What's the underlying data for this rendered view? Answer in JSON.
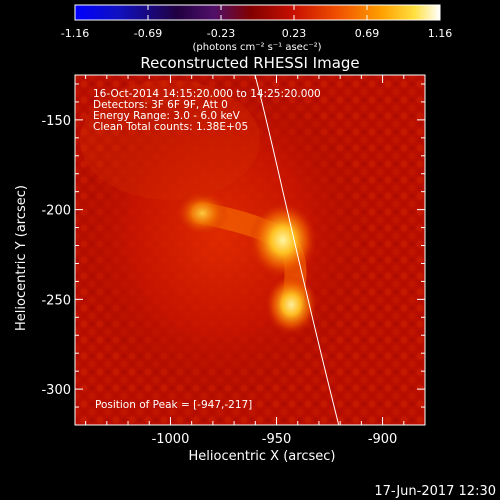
{
  "colorbar": {
    "tick_labels": [
      "-1.16",
      "-0.69",
      "-0.23",
      "0.23",
      "0.69",
      "1.16"
    ],
    "unit_label": "(photons cm⁻² s⁻¹ asec⁻²)"
  },
  "title": "Reconstructed RHESSI Image",
  "info": {
    "line1": "16-Oct-2014 14:15:20.000 to 14:25:20.000",
    "line2": "Detectors: 3F 6F 9F, Att 0",
    "line3": "Energy Range: 3.0 - 6.0 keV",
    "line4": "Clean    Total counts: 1.38E+05"
  },
  "peak_label": "Position of Peak = [-947,-217]",
  "axes": {
    "xlabel": "Heliocentric X (arcsec)",
    "ylabel": "Heliocentric Y (arcsec)",
    "x_ticks": [
      "-1000",
      "-950",
      "-900"
    ],
    "y_ticks": [
      "-150",
      "-200",
      "-250",
      "-300"
    ],
    "xlim": [
      -1045,
      -880
    ],
    "ylim": [
      -320,
      -125
    ]
  },
  "footer_timestamp": "17-Jun-2017 12:30",
  "sources": [
    {
      "x": -985,
      "y": -202
    },
    {
      "x": -947,
      "y": -217
    },
    {
      "x": -943,
      "y": -253
    }
  ]
}
